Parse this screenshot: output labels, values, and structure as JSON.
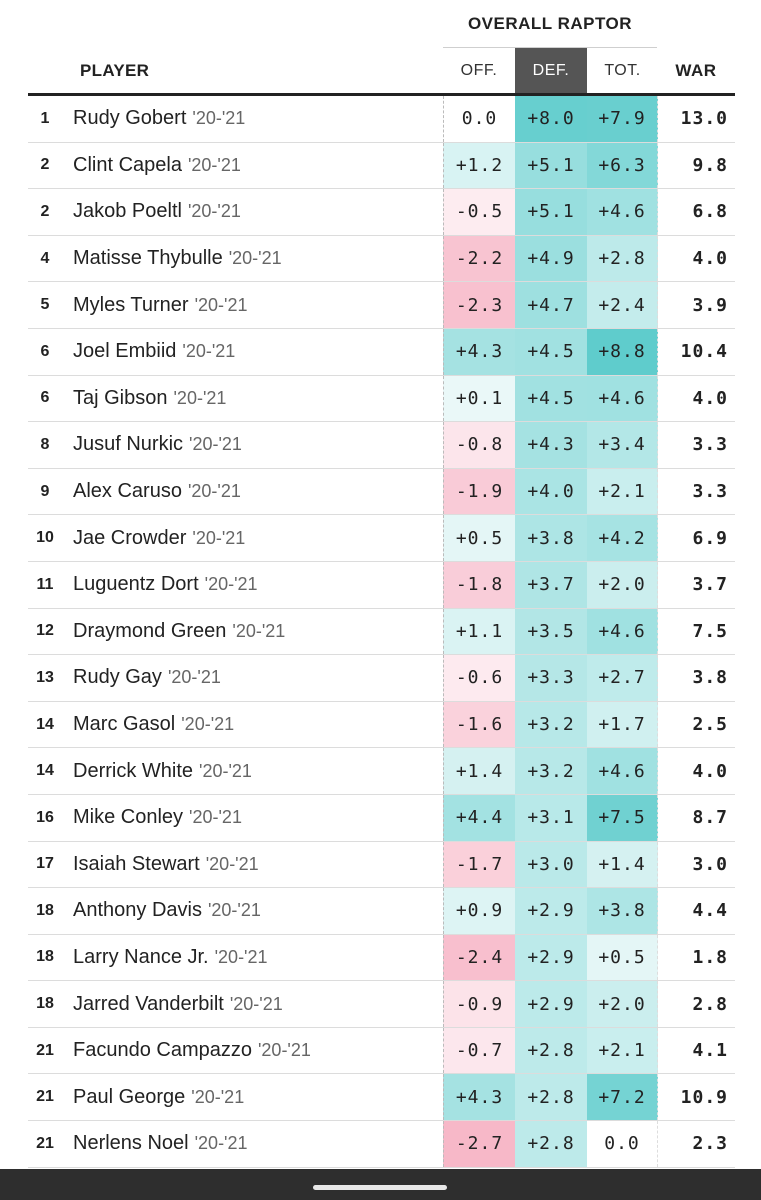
{
  "header": {
    "group_title": "OVERALL RAPTOR",
    "player": "PLAYER",
    "off": "OFF.",
    "def": "DEF.",
    "tot": "TOT.",
    "war": "WAR"
  },
  "rows": [
    {
      "rank": "1",
      "name": "Rudy Gobert",
      "season": "'20-'21",
      "off": "0.0",
      "def": "+8.0",
      "tot": "+7.9",
      "war": "13.0"
    },
    {
      "rank": "2",
      "name": "Clint Capela",
      "season": "'20-'21",
      "off": "+1.2",
      "def": "+5.1",
      "tot": "+6.3",
      "war": "9.8"
    },
    {
      "rank": "2",
      "name": "Jakob Poeltl",
      "season": "'20-'21",
      "off": "-0.5",
      "def": "+5.1",
      "tot": "+4.6",
      "war": "6.8"
    },
    {
      "rank": "4",
      "name": "Matisse Thybulle",
      "season": "'20-'21",
      "off": "-2.2",
      "def": "+4.9",
      "tot": "+2.8",
      "war": "4.0"
    },
    {
      "rank": "5",
      "name": "Myles Turner",
      "season": "'20-'21",
      "off": "-2.3",
      "def": "+4.7",
      "tot": "+2.4",
      "war": "3.9"
    },
    {
      "rank": "6",
      "name": "Joel Embiid",
      "season": "'20-'21",
      "off": "+4.3",
      "def": "+4.5",
      "tot": "+8.8",
      "war": "10.4"
    },
    {
      "rank": "6",
      "name": "Taj Gibson",
      "season": "'20-'21",
      "off": "+0.1",
      "def": "+4.5",
      "tot": "+4.6",
      "war": "4.0"
    },
    {
      "rank": "8",
      "name": "Jusuf Nurkic",
      "season": "'20-'21",
      "off": "-0.8",
      "def": "+4.3",
      "tot": "+3.4",
      "war": "3.3"
    },
    {
      "rank": "9",
      "name": "Alex Caruso",
      "season": "'20-'21",
      "off": "-1.9",
      "def": "+4.0",
      "tot": "+2.1",
      "war": "3.3"
    },
    {
      "rank": "10",
      "name": "Jae Crowder",
      "season": "'20-'21",
      "off": "+0.5",
      "def": "+3.8",
      "tot": "+4.2",
      "war": "6.9"
    },
    {
      "rank": "11",
      "name": "Luguentz Dort",
      "season": "'20-'21",
      "off": "-1.8",
      "def": "+3.7",
      "tot": "+2.0",
      "war": "3.7"
    },
    {
      "rank": "12",
      "name": "Draymond Green",
      "season": "'20-'21",
      "off": "+1.1",
      "def": "+3.5",
      "tot": "+4.6",
      "war": "7.5"
    },
    {
      "rank": "13",
      "name": "Rudy Gay",
      "season": "'20-'21",
      "off": "-0.6",
      "def": "+3.3",
      "tot": "+2.7",
      "war": "3.8"
    },
    {
      "rank": "14",
      "name": "Marc Gasol",
      "season": "'20-'21",
      "off": "-1.6",
      "def": "+3.2",
      "tot": "+1.7",
      "war": "2.5"
    },
    {
      "rank": "14",
      "name": "Derrick White",
      "season": "'20-'21",
      "off": "+1.4",
      "def": "+3.2",
      "tot": "+4.6",
      "war": "4.0"
    },
    {
      "rank": "16",
      "name": "Mike Conley",
      "season": "'20-'21",
      "off": "+4.4",
      "def": "+3.1",
      "tot": "+7.5",
      "war": "8.7"
    },
    {
      "rank": "17",
      "name": "Isaiah Stewart",
      "season": "'20-'21",
      "off": "-1.7",
      "def": "+3.0",
      "tot": "+1.4",
      "war": "3.0"
    },
    {
      "rank": "18",
      "name": "Anthony Davis",
      "season": "'20-'21",
      "off": "+0.9",
      "def": "+2.9",
      "tot": "+3.8",
      "war": "4.4"
    },
    {
      "rank": "18",
      "name": "Larry Nance Jr.",
      "season": "'20-'21",
      "off": "-2.4",
      "def": "+2.9",
      "tot": "+0.5",
      "war": "1.8"
    },
    {
      "rank": "18",
      "name": "Jarred Vanderbilt",
      "season": "'20-'21",
      "off": "-0.9",
      "def": "+2.9",
      "tot": "+2.0",
      "war": "2.8"
    },
    {
      "rank": "21",
      "name": "Facundo Campazzo",
      "season": "'20-'21",
      "off": "-0.7",
      "def": "+2.8",
      "tot": "+2.1",
      "war": "4.1"
    },
    {
      "rank": "21",
      "name": "Paul George",
      "season": "'20-'21",
      "off": "+4.3",
      "def": "+2.8",
      "tot": "+7.2",
      "war": "10.9"
    },
    {
      "rank": "21",
      "name": "Nerlens Noel",
      "season": "'20-'21",
      "off": "-2.7",
      "def": "+2.8",
      "tot": "0.0",
      "war": "2.3"
    }
  ],
  "colors": {
    "header_dark": "#555555",
    "positive": "#5fcccc",
    "negative": "#f7b8c8",
    "neutral": "#ffffff",
    "nav_bar": "#2e2e2e"
  }
}
